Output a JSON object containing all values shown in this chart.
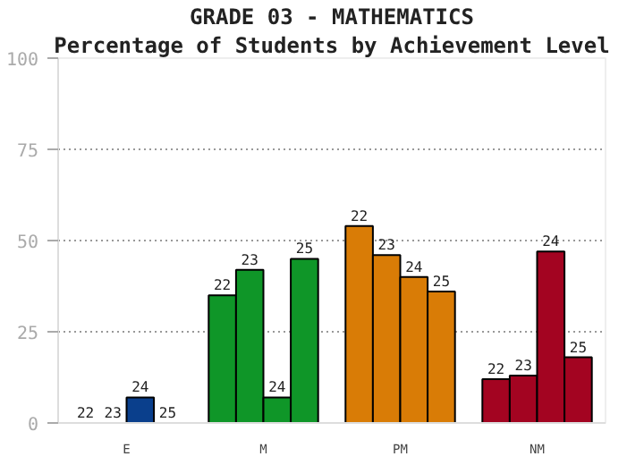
{
  "chart_data": {
    "type": "bar",
    "title": "GRADE 03 - MATHEMATICS",
    "subtitle": "Percentage of Students by Achievement Level",
    "categories": [
      "E",
      "M",
      "PM",
      "NM"
    ],
    "series": [
      {
        "name": "22",
        "colors": [
          "#0a3f8c",
          "#0f9628",
          "#d97c06",
          "#a30421"
        ],
        "values": [
          0,
          35,
          54,
          12
        ]
      },
      {
        "name": "23",
        "colors": [
          "#0a3f8c",
          "#0f9628",
          "#d97c06",
          "#a30421"
        ],
        "values": [
          0,
          42,
          46,
          13
        ]
      },
      {
        "name": "24",
        "colors": [
          "#0a3f8c",
          "#0f9628",
          "#d97c06",
          "#a30421"
        ],
        "values": [
          7,
          7,
          40,
          47
        ]
      },
      {
        "name": "25",
        "colors": [
          "#0a3f8c",
          "#0f9628",
          "#d97c06",
          "#a30421"
        ],
        "values": [
          0,
          45,
          36,
          18
        ]
      }
    ],
    "ylim": [
      0,
      100
    ],
    "yticks": [
      0,
      25,
      50,
      75,
      100
    ],
    "grid": "y"
  }
}
